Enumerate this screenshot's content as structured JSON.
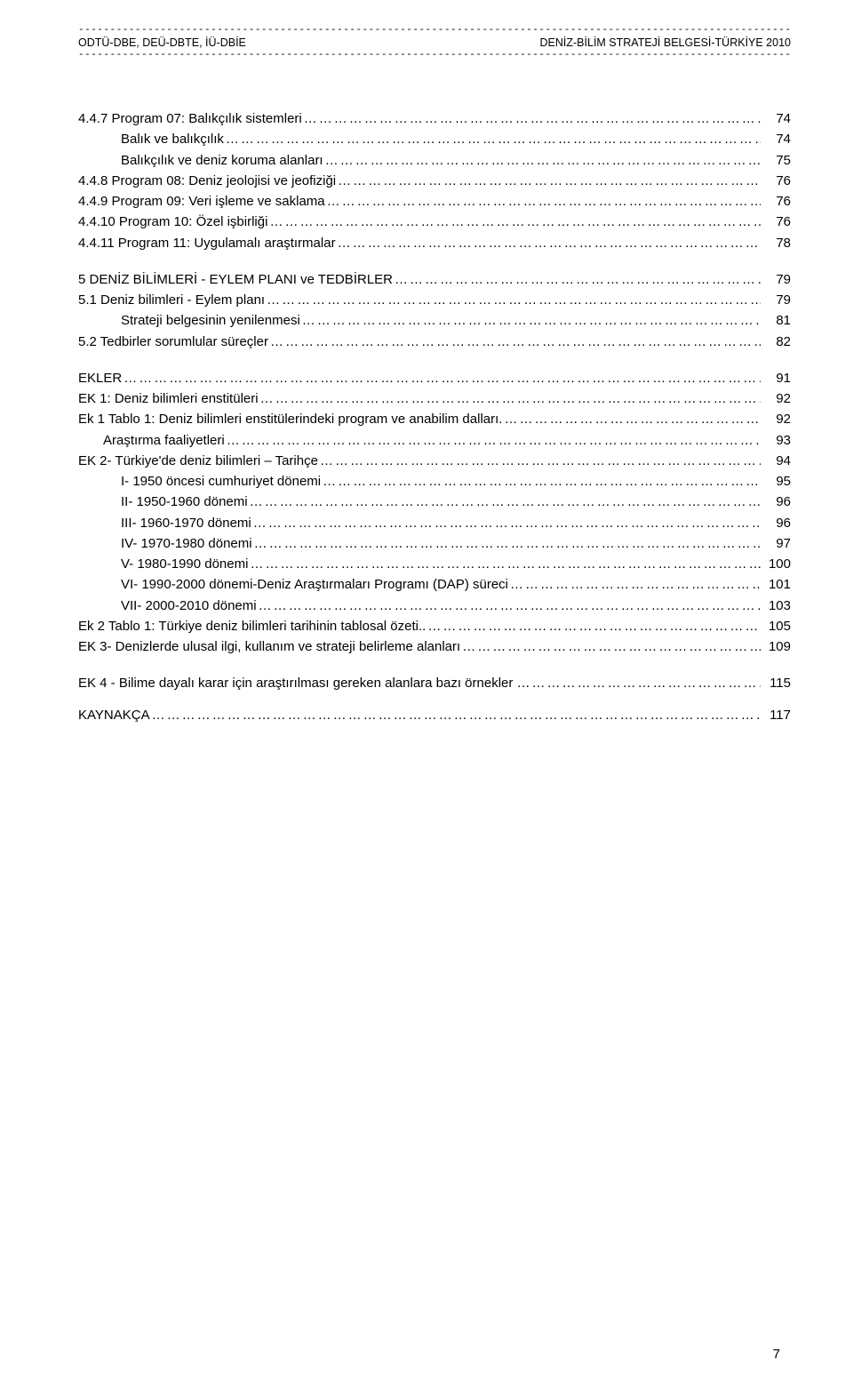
{
  "header": {
    "left": "ODTÜ-DBE, DEÜ-DBTE, İÜ-DBİE",
    "right": "DENİZ-BİLİM STRATEJİ BELGESİ-TÜRKİYE 2010"
  },
  "toc": [
    {
      "label": "4.4.7 Program 07: Balıkçılık sistemleri",
      "page": "74",
      "indent": 0,
      "gapBefore": false
    },
    {
      "label": "Balık ve balıkçılık",
      "page": "74",
      "indent": 1,
      "gapBefore": false
    },
    {
      "label": "Balıkçılık ve deniz koruma alanları",
      "page": "75",
      "indent": 1,
      "gapBefore": false
    },
    {
      "label": "4.4.8 Program 08: Deniz jeolojisi ve jeofiziği",
      "page": "76",
      "indent": 0,
      "gapBefore": false
    },
    {
      "label": "4.4.9 Program 09: Veri işleme ve saklama",
      "page": "76",
      "indent": 0,
      "gapBefore": false
    },
    {
      "label": "4.4.10 Program 10: Özel işbirliği",
      "page": "76",
      "indent": 0,
      "gapBefore": false
    },
    {
      "label": "4.4.11 Program 11: Uygulamalı araştırmalar",
      "page": "78",
      "indent": 0,
      "gapBefore": false
    },
    {
      "label": "5 DENİZ BİLİMLERİ - EYLEM PLANI ve TEDBİRLER",
      "page": "79",
      "indent": 0,
      "gapBefore": true
    },
    {
      "label": "5.1 Deniz bilimleri - Eylem planı",
      "page": "79",
      "indent": 0,
      "gapBefore": false
    },
    {
      "label": "Strateji belgesinin yenilenmesi",
      "page": "81",
      "indent": 1,
      "gapBefore": false
    },
    {
      "label": "5.2 Tedbirler sorumlular süreçler",
      "page": "82",
      "indent": 0,
      "gapBefore": false
    },
    {
      "label": "EKLER",
      "page": "91",
      "indent": 0,
      "gapBefore": true
    },
    {
      "label": "EK 1: Deniz bilimleri enstitüleri",
      "page": "92",
      "indent": 0,
      "gapBefore": false
    },
    {
      "label": "Ek 1 Tablo 1: Deniz bilimleri enstitülerindeki program ve anabilim dalları.",
      "page": "92",
      "indent": 0,
      "gapBefore": false
    },
    {
      "label": "Araştırma faaliyetleri",
      "page": "93",
      "indent": 2,
      "gapBefore": false
    },
    {
      "label": "EK 2- Türkiye'de deniz bilimleri – Tarihçe",
      "page": "94",
      "indent": 0,
      "gapBefore": false
    },
    {
      "label": "I- 1950 öncesi cumhuriyet dönemi",
      "page": "95",
      "indent": 1,
      "gapBefore": false
    },
    {
      "label": "II- 1950-1960 dönemi",
      "page": "96",
      "indent": 1,
      "gapBefore": false
    },
    {
      "label": "III- 1960-1970 dönemi",
      "page": "96",
      "indent": 1,
      "gapBefore": false
    },
    {
      "label": "IV- 1970-1980 dönemi",
      "page": "97",
      "indent": 1,
      "gapBefore": false
    },
    {
      "label": "V- 1980-1990 dönemi",
      "page": "100",
      "indent": 1,
      "gapBefore": false
    },
    {
      "label": "VI- 1990-2000 dönemi-Deniz Araştırmaları Programı (DAP) süreci",
      "page": "101",
      "indent": 1,
      "gapBefore": false
    },
    {
      "label": "VII- 2000-2010 dönemi",
      "page": "103",
      "indent": 1,
      "gapBefore": false
    },
    {
      "label": "Ek 2 Tablo 1: Türkiye deniz bilimleri tarihinin tablosal özeti..",
      "page": "105",
      "indent": 0,
      "gapBefore": false
    },
    {
      "label": "EK 3- Denizlerde ulusal ilgi, kullanım ve strateji belirleme alanları",
      "page": "109",
      "indent": 0,
      "gapBefore": false
    },
    {
      "label": "EK 4 - Bilime dayalı karar için araştırılması gereken alanlara bazı örnekler …",
      "page": "115",
      "indent": 0,
      "gapBefore": true
    },
    {
      "label": "KAYNAKÇA",
      "page": "117",
      "indent": 0,
      "gapBefore": true,
      "smallGap": true
    }
  ],
  "pageNumber": "7",
  "style": {
    "dotFill": "………………………………………………………………………………………………………………………………………………………………………………………………………………",
    "dashFill": "------------------------------------------------------------------------------------------------------------------------------------------------------------------------------------------"
  }
}
